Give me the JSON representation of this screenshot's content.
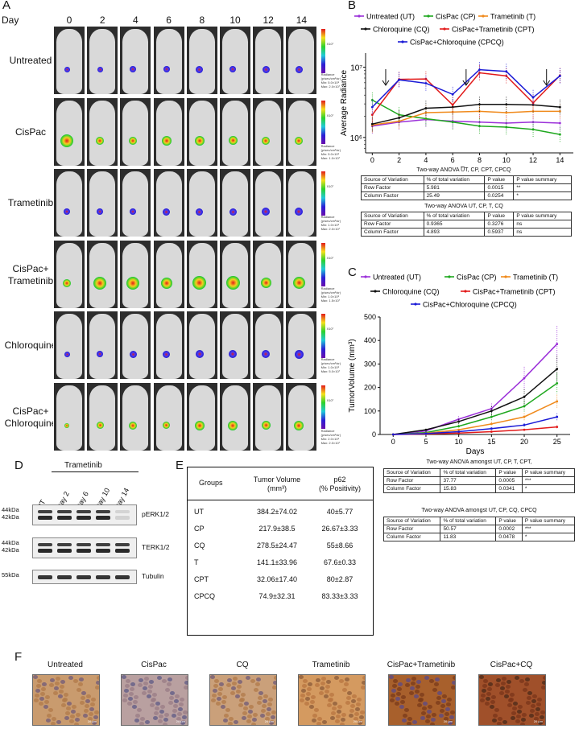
{
  "panelA": {
    "label": "A",
    "day_label": "Day",
    "days": [
      "0",
      "2",
      "4",
      "6",
      "8",
      "10",
      "12",
      "14"
    ],
    "rows": [
      {
        "label": "Untreated",
        "spot_color": "#2a1fd6",
        "spot_size": [
          7,
          7,
          8,
          8,
          9,
          8,
          9,
          9
        ]
      },
      {
        "label": "CisPac",
        "spot_color": "#e8342a",
        "spot_size": [
          16,
          10,
          10,
          12,
          12,
          11,
          10,
          10
        ]
      },
      {
        "label": "Trametinib",
        "spot_color": "#2a1fd6",
        "spot_size": [
          8,
          8,
          8,
          9,
          9,
          9,
          10,
          10
        ]
      },
      {
        "label": "CisPac+\nTrametinib",
        "spot_color": "#f0a020",
        "spot_size": [
          10,
          16,
          16,
          14,
          17,
          17,
          13,
          15
        ]
      },
      {
        "label": "Chloroquine",
        "spot_color": "#2a1fd6",
        "spot_size": [
          7,
          8,
          9,
          9,
          10,
          10,
          10,
          11
        ]
      },
      {
        "label": "CisPac+\nChloroquine",
        "spot_color": "#e8342a",
        "spot_size": [
          6,
          9,
          10,
          9,
          12,
          12,
          11,
          12
        ]
      }
    ],
    "colorbar_texts": [
      [
        "Radiance",
        "(p/sec/cm²/sr)",
        "Min: 5.0×10⁵",
        "Max: 2.0×10⁷"
      ],
      [
        "Radiance",
        "(p/sec/cm²/sr)",
        "Min: 5.0×10⁵",
        "Max: 1.0×10⁷"
      ],
      [
        "Radiance",
        "(p/sec/cm²/sr)",
        "Min: 1.0×10⁶",
        "Max: 2.0×10⁷"
      ],
      [
        "Radiance",
        "(p/sec/cm²/sr)",
        "Min: 1.0×10⁶",
        "Max: 1.5×10⁷"
      ],
      [
        "Radiance",
        "(p/sec/cm²/sr)",
        "Min: 1.0×10⁶",
        "Max: 5.0×10⁷"
      ],
      [
        "Radiance",
        "(p/sec/cm²/sr)",
        "Min: 2.0×10⁶",
        "Max: 2.0×10⁷"
      ]
    ],
    "colorbar_unit": "X10⁷"
  },
  "panelB": {
    "label": "B",
    "legend": [
      "Untreated (UT)",
      "CisPac (CP)",
      "Trametinib (T)",
      "Chloroquine (CQ)",
      "CisPac+Trametinib (CPT)",
      "CisPac+Chloroquine (CPCQ)"
    ],
    "anova1": {
      "title": "Two-way ANOVA UT, CP, CPT, CPCQ",
      "header": [
        "Source of Variation",
        "% of total variation",
        "P value",
        "P value summary"
      ],
      "rows": [
        [
          "Row Factor",
          "5.981",
          "0.0015",
          "**"
        ],
        [
          "Column Factor",
          "25.49",
          "0.0254",
          "*"
        ]
      ]
    },
    "anova2": {
      "title": "Two-way ANOVA UT, CP, T, CQ",
      "header": [
        "Source of Variation",
        "% of total variation",
        "P value",
        "P value summary"
      ],
      "rows": [
        [
          "Row Factor",
          "0.9365",
          "0.3276",
          "ns"
        ],
        [
          "Column Factor",
          "4.893",
          "0.5937",
          "ns"
        ]
      ]
    }
  },
  "panelC": {
    "label": "C",
    "legend": [
      "Untreated (UT)",
      "CisPac (CP)",
      "Trametinib (T)",
      "Chloroquine (CQ)",
      "CisPac+Trametinib (CPT)",
      "CisPac+Chloroquine (CPCQ)"
    ],
    "anova1": {
      "title": "Two-way ANOVA amongst UT, CP, T, CPT,",
      "header": [
        "Source of Variation",
        "% of total variation",
        "P value",
        "P value summary"
      ],
      "rows": [
        [
          "Row Factor",
          "37.77",
          "0.0005",
          "***"
        ],
        [
          "Column Factor",
          "15.83",
          "0.0341",
          "*"
        ]
      ]
    },
    "anova2": {
      "title": "Two-way ANOVA amongst UT, CP, CQ, CPCQ",
      "header": [
        "Source of Variation",
        "% of total variation",
        "P value",
        "P value summary"
      ],
      "rows": [
        [
          "Row Factor",
          "50.57",
          "0.0002",
          "***"
        ],
        [
          "Column Factor",
          "11.83",
          "0.0478",
          "*"
        ]
      ]
    }
  },
  "panelD": {
    "label": "D",
    "group": "Trametinib",
    "lanes": [
      "UT",
      "Day 2",
      "Day 6",
      "Day 10",
      "Day 14"
    ],
    "blots": [
      {
        "name": "pERK1/2",
        "markers": [
          "44kDa",
          "42kDa"
        ]
      },
      {
        "name": "TERK1/2",
        "markers": [
          "44kDa",
          "42kDa"
        ]
      },
      {
        "name": "Tubulin",
        "markers": [
          "55kDa"
        ]
      }
    ]
  },
  "panelE": {
    "label": "E",
    "header": [
      "Groups",
      "Tumor Volume",
      "(mm³)",
      "p62",
      "(% Positivity)"
    ],
    "rows": [
      [
        "UT",
        "384.2±74.02",
        "40±5.77"
      ],
      [
        "CP",
        "217.9±38.5",
        "26.67±3.33"
      ],
      [
        "CQ",
        "278.5±24.47",
        "55±8.66"
      ],
      [
        "T",
        "141.1±33.96",
        "67.6±0.33"
      ],
      [
        "CPT",
        "32.06±17.40",
        "80±2.87"
      ],
      [
        "CPCQ",
        "74.9±32.31",
        "83.33±3.33"
      ]
    ]
  },
  "panelF": {
    "label": "F",
    "images": [
      {
        "label": "Untreated",
        "scale": "20 µm"
      },
      {
        "label": "CisPac",
        "scale": "20 µm"
      },
      {
        "label": "CQ",
        "scale": "20 µm"
      },
      {
        "label": "Trametinib",
        "scale": "20 µm"
      },
      {
        "label": "CisPac+Trametinib",
        "scale": "20 µm"
      },
      {
        "label": "CisPac+CQ",
        "scale": "20 µm"
      }
    ]
  },
  "chart_data": [
    {
      "type": "line",
      "id": "panelB-radiance",
      "title": "",
      "xlabel": "Days",
      "ylabel": "Average Radiance",
      "yscale": "log",
      "xlim": [
        -0.5,
        15
      ],
      "ylim_log10": [
        5.78,
        7.2
      ],
      "x": [
        0,
        2,
        4,
        6,
        8,
        10,
        12,
        14
      ],
      "xticks": [
        "0",
        "2",
        "4",
        "6",
        "8",
        "10",
        "12",
        "14"
      ],
      "yticks": [
        {
          "v": 1000000,
          "label": "10⁶"
        },
        {
          "v": 10000000,
          "label": "10⁷"
        }
      ],
      "arrows_at_days": [
        1,
        7,
        13
      ],
      "series": [
        {
          "name": "Untreated (UT)",
          "color": "#9b30d9",
          "values": [
            1450000,
            1650000,
            1800000,
            1700000,
            1650000,
            1600000,
            1650000,
            1600000
          ]
        },
        {
          "name": "CisPac (CP)",
          "color": "#1fa81f",
          "values": [
            3400000,
            2100000,
            1850000,
            1650000,
            1450000,
            1400000,
            1300000,
            1100000
          ]
        },
        {
          "name": "Trametinib (T)",
          "color": "#f08a1c",
          "values": [
            1500000,
            1700000,
            2250000,
            2300000,
            2350000,
            2250000,
            2350000,
            2350000
          ]
        },
        {
          "name": "Chloroquine (CQ)",
          "color": "#111111",
          "values": [
            1550000,
            1900000,
            2600000,
            2700000,
            2950000,
            2950000,
            2900000,
            2700000
          ]
        },
        {
          "name": "CisPac+Trametinib (CPT)",
          "color": "#e21a1a",
          "values": [
            2100000,
            6700000,
            6800000,
            2900000,
            8300000,
            7500000,
            3100000,
            7600000
          ]
        },
        {
          "name": "CisPac+Chloroquine (CPCQ)",
          "color": "#1a1ad6",
          "values": [
            2700000,
            6600000,
            5900000,
            4100000,
            9200000,
            8700000,
            3700000,
            7500000
          ]
        }
      ]
    },
    {
      "type": "line",
      "id": "panelC-tumorvolume",
      "title": "",
      "xlabel": "Days",
      "ylabel": "TumorVolume (mm³)",
      "xlim": [
        -2,
        27
      ],
      "ylim": [
        0,
        500
      ],
      "x": [
        0,
        5,
        10,
        15,
        20,
        25
      ],
      "xticks": [
        "0",
        "5",
        "10",
        "15",
        "20",
        "25"
      ],
      "yticks": [
        "0",
        "100",
        "200",
        "300",
        "400",
        "500"
      ],
      "series": [
        {
          "name": "Untreated (UT)",
          "color": "#9b30d9",
          "values": [
            0,
            15,
            65,
            110,
            240,
            385
          ]
        },
        {
          "name": "CisPac (CP)",
          "color": "#1fa81f",
          "values": [
            0,
            8,
            35,
            75,
            120,
            218
          ]
        },
        {
          "name": "Trametinib (T)",
          "color": "#f08a1c",
          "values": [
            0,
            5,
            20,
            45,
            75,
            141
          ]
        },
        {
          "name": "Chloroquine (CQ)",
          "color": "#111111",
          "values": [
            0,
            20,
            55,
            100,
            160,
            279
          ]
        },
        {
          "name": "CisPac+Trametinib (CPT)",
          "color": "#e21a1a",
          "values": [
            0,
            2,
            6,
            12,
            20,
            32
          ]
        },
        {
          "name": "CisPac+Chloroquine (CPCQ)",
          "color": "#1a1ad6",
          "values": [
            0,
            4,
            12,
            25,
            40,
            75
          ]
        }
      ]
    }
  ]
}
